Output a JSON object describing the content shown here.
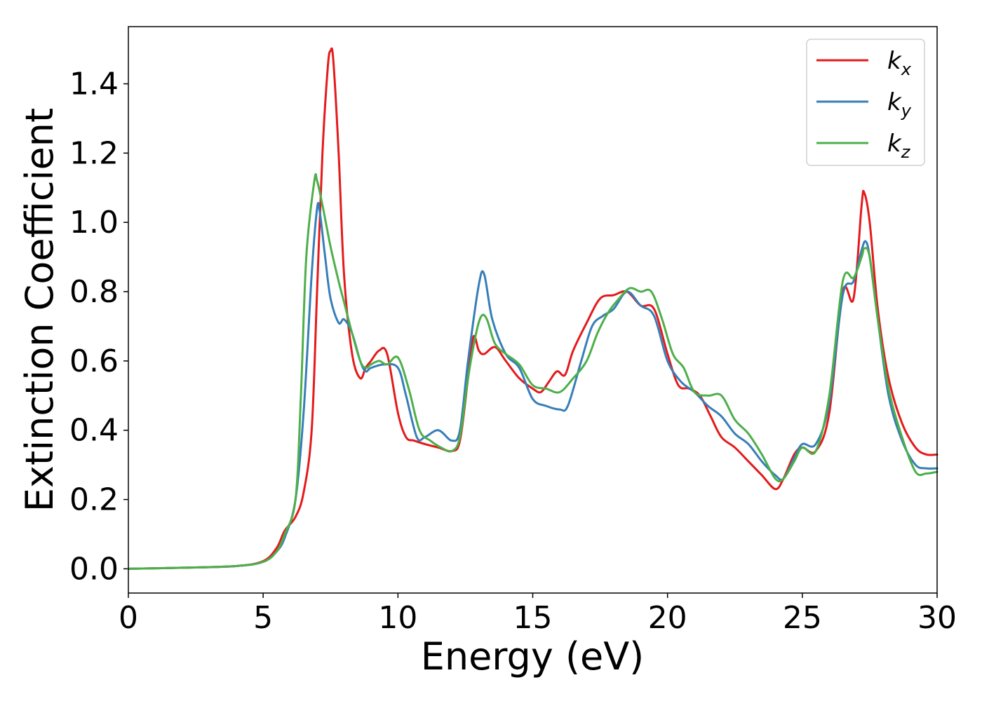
{
  "chart_data": {
    "type": "line",
    "xlabel": "Energy (eV)",
    "ylabel": "Extinction Coefficient",
    "xlim": [
      0,
      30
    ],
    "ylim": [
      -0.07,
      1.565
    ],
    "xticks": [
      0,
      5,
      10,
      15,
      20,
      25,
      30
    ],
    "xtick_labels": [
      "0",
      "5",
      "10",
      "15",
      "20",
      "25",
      "30"
    ],
    "yticks": [
      0.0,
      0.2,
      0.4,
      0.6,
      0.8,
      1.0,
      1.2,
      1.4
    ],
    "ytick_labels": [
      "0.0",
      "0.2",
      "0.4",
      "0.6",
      "0.8",
      "1.0",
      "1.2",
      "1.4"
    ],
    "grid": false,
    "legend": {
      "placement": "top-right"
    },
    "series": [
      {
        "name": "k",
        "subscript": "x",
        "color": "#e41a1c",
        "points": [
          [
            0,
            0
          ],
          [
            2,
            0.003
          ],
          [
            4,
            0.008
          ],
          [
            5,
            0.022
          ],
          [
            5.5,
            0.06
          ],
          [
            5.8,
            0.11
          ],
          [
            6.2,
            0.15
          ],
          [
            6.5,
            0.22
          ],
          [
            6.8,
            0.4
          ],
          [
            7.0,
            0.8
          ],
          [
            7.2,
            1.2
          ],
          [
            7.4,
            1.45
          ],
          [
            7.5,
            1.495
          ],
          [
            7.6,
            1.47
          ],
          [
            7.8,
            1.2
          ],
          [
            8.0,
            0.85
          ],
          [
            8.3,
            0.62
          ],
          [
            8.6,
            0.55
          ],
          [
            8.8,
            0.58
          ],
          [
            9.0,
            0.6
          ],
          [
            9.3,
            0.63
          ],
          [
            9.6,
            0.62
          ],
          [
            10.0,
            0.45
          ],
          [
            10.3,
            0.38
          ],
          [
            10.6,
            0.37
          ],
          [
            11.0,
            0.36
          ],
          [
            11.5,
            0.35
          ],
          [
            12.0,
            0.34
          ],
          [
            12.3,
            0.37
          ],
          [
            12.6,
            0.55
          ],
          [
            12.8,
            0.67
          ],
          [
            13.0,
            0.63
          ],
          [
            13.2,
            0.62
          ],
          [
            13.6,
            0.64
          ],
          [
            14.0,
            0.6
          ],
          [
            14.5,
            0.55
          ],
          [
            15.0,
            0.52
          ],
          [
            15.3,
            0.51
          ],
          [
            15.6,
            0.54
          ],
          [
            15.9,
            0.57
          ],
          [
            16.2,
            0.56
          ],
          [
            16.5,
            0.63
          ],
          [
            17.0,
            0.71
          ],
          [
            17.5,
            0.78
          ],
          [
            18.0,
            0.79
          ],
          [
            18.5,
            0.8
          ],
          [
            19.0,
            0.76
          ],
          [
            19.5,
            0.75
          ],
          [
            20.0,
            0.62
          ],
          [
            20.4,
            0.53
          ],
          [
            20.8,
            0.52
          ],
          [
            21.2,
            0.5
          ],
          [
            21.6,
            0.44
          ],
          [
            22.0,
            0.38
          ],
          [
            22.5,
            0.35
          ],
          [
            23.0,
            0.31
          ],
          [
            23.5,
            0.27
          ],
          [
            24.0,
            0.23
          ],
          [
            24.3,
            0.26
          ],
          [
            24.7,
            0.33
          ],
          [
            25.0,
            0.35
          ],
          [
            25.5,
            0.34
          ],
          [
            26.0,
            0.45
          ],
          [
            26.5,
            0.8
          ],
          [
            26.9,
            0.78
          ],
          [
            27.2,
            1.05
          ],
          [
            27.3,
            1.085
          ],
          [
            27.5,
            1.0
          ],
          [
            27.8,
            0.75
          ],
          [
            28.2,
            0.55
          ],
          [
            28.7,
            0.42
          ],
          [
            29.2,
            0.35
          ],
          [
            29.6,
            0.33
          ],
          [
            30.0,
            0.33
          ]
        ]
      },
      {
        "name": "k",
        "subscript": "y",
        "color": "#377eb8",
        "points": [
          [
            0,
            0
          ],
          [
            2,
            0.003
          ],
          [
            4,
            0.008
          ],
          [
            5,
            0.02
          ],
          [
            5.5,
            0.05
          ],
          [
            5.8,
            0.09
          ],
          [
            6.2,
            0.2
          ],
          [
            6.5,
            0.45
          ],
          [
            6.8,
            0.85
          ],
          [
            7.0,
            1.04
          ],
          [
            7.1,
            1.03
          ],
          [
            7.3,
            0.9
          ],
          [
            7.5,
            0.78
          ],
          [
            7.8,
            0.71
          ],
          [
            8.0,
            0.72
          ],
          [
            8.3,
            0.68
          ],
          [
            8.6,
            0.6
          ],
          [
            8.8,
            0.57
          ],
          [
            9.0,
            0.58
          ],
          [
            9.5,
            0.59
          ],
          [
            10.0,
            0.58
          ],
          [
            10.3,
            0.5
          ],
          [
            10.7,
            0.38
          ],
          [
            11.0,
            0.38
          ],
          [
            11.5,
            0.4
          ],
          [
            12.0,
            0.37
          ],
          [
            12.3,
            0.4
          ],
          [
            12.6,
            0.6
          ],
          [
            13.0,
            0.82
          ],
          [
            13.2,
            0.85
          ],
          [
            13.5,
            0.72
          ],
          [
            14.0,
            0.62
          ],
          [
            14.5,
            0.58
          ],
          [
            15.0,
            0.49
          ],
          [
            15.5,
            0.47
          ],
          [
            16.0,
            0.46
          ],
          [
            16.3,
            0.47
          ],
          [
            16.8,
            0.6
          ],
          [
            17.2,
            0.7
          ],
          [
            17.6,
            0.73
          ],
          [
            18.0,
            0.75
          ],
          [
            18.5,
            0.8
          ],
          [
            19.0,
            0.76
          ],
          [
            19.5,
            0.73
          ],
          [
            20.0,
            0.6
          ],
          [
            20.5,
            0.54
          ],
          [
            21.0,
            0.51
          ],
          [
            21.5,
            0.47
          ],
          [
            22.0,
            0.44
          ],
          [
            22.5,
            0.39
          ],
          [
            23.0,
            0.36
          ],
          [
            23.5,
            0.31
          ],
          [
            24.0,
            0.27
          ],
          [
            24.3,
            0.26
          ],
          [
            24.7,
            0.32
          ],
          [
            25.0,
            0.36
          ],
          [
            25.5,
            0.36
          ],
          [
            26.0,
            0.48
          ],
          [
            26.5,
            0.79
          ],
          [
            26.9,
            0.83
          ],
          [
            27.2,
            0.92
          ],
          [
            27.35,
            0.945
          ],
          [
            27.5,
            0.9
          ],
          [
            27.8,
            0.72
          ],
          [
            28.2,
            0.5
          ],
          [
            28.7,
            0.37
          ],
          [
            29.2,
            0.3
          ],
          [
            29.6,
            0.29
          ],
          [
            30.0,
            0.29
          ]
        ]
      },
      {
        "name": "k",
        "subscript": "z",
        "color": "#4daf4a",
        "points": [
          [
            0,
            0
          ],
          [
            2,
            0.003
          ],
          [
            4,
            0.008
          ],
          [
            5,
            0.02
          ],
          [
            5.5,
            0.05
          ],
          [
            5.8,
            0.1
          ],
          [
            6.2,
            0.2
          ],
          [
            6.4,
            0.5
          ],
          [
            6.6,
            0.9
          ],
          [
            6.9,
            1.12
          ],
          [
            7.0,
            1.12
          ],
          [
            7.2,
            1.05
          ],
          [
            7.5,
            0.93
          ],
          [
            7.8,
            0.83
          ],
          [
            8.0,
            0.77
          ],
          [
            8.3,
            0.68
          ],
          [
            8.6,
            0.6
          ],
          [
            8.8,
            0.58
          ],
          [
            9.0,
            0.59
          ],
          [
            9.3,
            0.6
          ],
          [
            9.6,
            0.59
          ],
          [
            10.0,
            0.61
          ],
          [
            10.4,
            0.52
          ],
          [
            10.8,
            0.4
          ],
          [
            11.2,
            0.37
          ],
          [
            11.6,
            0.35
          ],
          [
            12.0,
            0.34
          ],
          [
            12.3,
            0.38
          ],
          [
            12.6,
            0.55
          ],
          [
            12.9,
            0.68
          ],
          [
            13.1,
            0.73
          ],
          [
            13.3,
            0.72
          ],
          [
            13.6,
            0.65
          ],
          [
            14.0,
            0.62
          ],
          [
            14.5,
            0.59
          ],
          [
            15.0,
            0.53
          ],
          [
            15.5,
            0.52
          ],
          [
            16.0,
            0.51
          ],
          [
            16.5,
            0.55
          ],
          [
            17.0,
            0.6
          ],
          [
            17.4,
            0.68
          ],
          [
            17.8,
            0.74
          ],
          [
            18.2,
            0.78
          ],
          [
            18.6,
            0.81
          ],
          [
            19.0,
            0.8
          ],
          [
            19.4,
            0.8
          ],
          [
            19.8,
            0.72
          ],
          [
            20.2,
            0.62
          ],
          [
            20.6,
            0.58
          ],
          [
            21.0,
            0.51
          ],
          [
            21.5,
            0.5
          ],
          [
            22.0,
            0.5
          ],
          [
            22.5,
            0.43
          ],
          [
            23.0,
            0.39
          ],
          [
            23.5,
            0.33
          ],
          [
            24.0,
            0.26
          ],
          [
            24.3,
            0.26
          ],
          [
            24.7,
            0.31
          ],
          [
            25.0,
            0.35
          ],
          [
            25.5,
            0.34
          ],
          [
            26.0,
            0.5
          ],
          [
            26.5,
            0.83
          ],
          [
            26.9,
            0.84
          ],
          [
            27.2,
            0.9
          ],
          [
            27.3,
            0.925
          ],
          [
            27.5,
            0.9
          ],
          [
            27.8,
            0.72
          ],
          [
            28.2,
            0.52
          ],
          [
            28.7,
            0.38
          ],
          [
            29.2,
            0.28
          ],
          [
            29.6,
            0.275
          ],
          [
            30.0,
            0.28
          ]
        ]
      }
    ]
  }
}
